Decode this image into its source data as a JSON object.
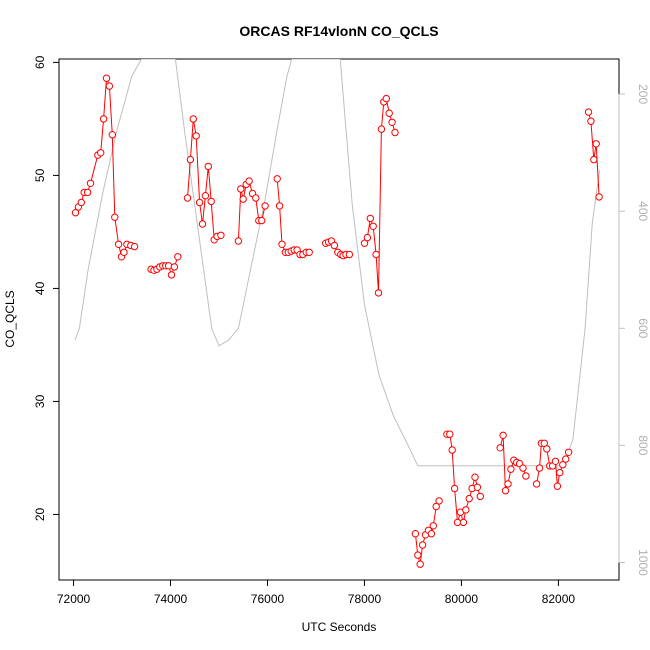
{
  "chart_data": {
    "type": "line",
    "title": "ORCAS RF14vlonN CO_QCLS",
    "xlabel": "UTC Seconds",
    "ylabel": "CO_QCLS",
    "xlim": [
      71700,
      83250
    ],
    "ylim": [
      14.2,
      60.3
    ],
    "x_ticks": [
      72000,
      74000,
      76000,
      78000,
      80000,
      82000
    ],
    "y_ticks": [
      20,
      30,
      40,
      50,
      60
    ],
    "right_axis": {
      "ticks": [
        200,
        400,
        600,
        800,
        1000
      ],
      "range_top": 140,
      "range_bottom": 1030,
      "color": "#c0c0c0"
    },
    "grid": false,
    "series": [
      {
        "color": "#ff0000",
        "marker": "open-circle",
        "segments": [
          [
            [
              72040,
              46.7
            ],
            [
              72100,
              47.2
            ],
            [
              72160,
              47.6
            ],
            [
              72220,
              48.5
            ],
            [
              72290,
              48.5
            ],
            [
              72350,
              49.3
            ],
            [
              72500,
              51.8
            ],
            [
              72560,
              52.0
            ],
            [
              72620,
              55.0
            ],
            [
              72680,
              58.6
            ],
            [
              72740,
              57.9
            ],
            [
              72800,
              53.6
            ],
            [
              72850,
              46.3
            ],
            [
              72930,
              43.9
            ],
            [
              72990,
              42.8
            ],
            [
              73040,
              43.2
            ],
            [
              73100,
              43.9
            ],
            [
              73180,
              43.8
            ],
            [
              73260,
              43.7
            ]
          ],
          [
            [
              73600,
              41.7
            ],
            [
              73660,
              41.6
            ],
            [
              73720,
              41.7
            ],
            [
              73780,
              41.9
            ],
            [
              73840,
              42.0
            ],
            [
              73900,
              42.0
            ],
            [
              73960,
              42.0
            ],
            [
              74020,
              41.2
            ],
            [
              74080,
              41.9
            ],
            [
              74150,
              42.8
            ]
          ],
          [
            [
              74350,
              48.0
            ],
            [
              74410,
              51.4
            ],
            [
              74470,
              55.0
            ],
            [
              74530,
              53.5
            ],
            [
              74600,
              47.6
            ],
            [
              74660,
              45.7
            ],
            [
              74720,
              48.2
            ],
            [
              74780,
              50.8
            ],
            [
              74840,
              47.7
            ],
            [
              74900,
              44.3
            ],
            [
              74960,
              44.6
            ],
            [
              75040,
              44.7
            ]
          ],
          [
            [
              75400,
              44.2
            ],
            [
              75450,
              48.8
            ],
            [
              75500,
              47.9
            ],
            [
              75560,
              49.2
            ],
            [
              75620,
              49.5
            ],
            [
              75690,
              48.4
            ],
            [
              75760,
              48.0
            ],
            [
              75820,
              46.0
            ],
            [
              75880,
              46.0
            ],
            [
              75950,
              47.3
            ]
          ],
          [
            [
              76200,
              49.7
            ],
            [
              76250,
              47.3
            ],
            [
              76300,
              43.9
            ],
            [
              76370,
              43.2
            ],
            [
              76430,
              43.2
            ],
            [
              76490,
              43.3
            ],
            [
              76550,
              43.4
            ],
            [
              76610,
              43.4
            ],
            [
              76670,
              43.0
            ],
            [
              76730,
              43.0
            ],
            [
              76800,
              43.2
            ],
            [
              76860,
              43.2
            ]
          ],
          [
            [
              77200,
              44.0
            ],
            [
              77260,
              44.1
            ],
            [
              77320,
              44.2
            ],
            [
              77380,
              43.8
            ],
            [
              77450,
              43.2
            ],
            [
              77510,
              43.0
            ],
            [
              77560,
              42.9
            ],
            [
              77620,
              43.0
            ],
            [
              77690,
              43.0
            ]
          ],
          [
            [
              78000,
              44.0
            ],
            [
              78060,
              44.5
            ],
            [
              78120,
              46.2
            ],
            [
              78180,
              45.5
            ],
            [
              78240,
              43.0
            ],
            [
              78290,
              39.6
            ],
            [
              78350,
              54.1
            ],
            [
              78400,
              56.5
            ],
            [
              78450,
              56.8
            ],
            [
              78510,
              55.5
            ],
            [
              78570,
              54.7
            ],
            [
              78630,
              53.8
            ]
          ],
          [
            [
              79050,
              18.3
            ],
            [
              79100,
              16.4
            ],
            [
              79150,
              15.6
            ],
            [
              79200,
              17.3
            ],
            [
              79260,
              18.2
            ],
            [
              79320,
              18.6
            ],
            [
              79380,
              18.3
            ],
            [
              79420,
              19.0
            ],
            [
              79480,
              20.7
            ],
            [
              79540,
              21.2
            ]
          ],
          [
            [
              79700,
              27.1
            ],
            [
              79760,
              27.1
            ],
            [
              79810,
              25.7
            ],
            [
              79860,
              22.3
            ],
            [
              79920,
              19.3
            ],
            [
              79980,
              20.2
            ],
            [
              80040,
              19.3
            ],
            [
              80090,
              20.4
            ],
            [
              80160,
              21.4
            ],
            [
              80220,
              22.3
            ],
            [
              80280,
              23.3
            ],
            [
              80330,
              22.4
            ],
            [
              80390,
              21.6
            ]
          ],
          [
            [
              80800,
              25.9
            ],
            [
              80860,
              27.0
            ],
            [
              80910,
              22.1
            ],
            [
              80960,
              22.7
            ],
            [
              81020,
              24.0
            ],
            [
              81080,
              24.8
            ],
            [
              81140,
              24.6
            ],
            [
              81200,
              24.5
            ],
            [
              81270,
              24.1
            ],
            [
              81330,
              23.4
            ]
          ],
          [
            [
              81550,
              22.7
            ],
            [
              81610,
              24.1
            ],
            [
              81650,
              26.3
            ],
            [
              81710,
              26.3
            ],
            [
              81760,
              25.8
            ],
            [
              81820,
              24.3
            ],
            [
              81880,
              24.3
            ],
            [
              81940,
              24.7
            ],
            [
              81980,
              22.5
            ],
            [
              82030,
              23.7
            ],
            [
              82090,
              24.4
            ],
            [
              82150,
              24.9
            ],
            [
              82210,
              25.5
            ]
          ],
          [
            [
              82620,
              55.6
            ],
            [
              82670,
              54.8
            ],
            [
              82730,
              51.4
            ],
            [
              82780,
              52.8
            ],
            [
              82840,
              48.1
            ]
          ]
        ]
      },
      {
        "color": "#bfbfbf",
        "marker": "none",
        "points_right_axis": [
          [
            72030,
            620
          ],
          [
            72120,
            600
          ],
          [
            72300,
            500
          ],
          [
            72600,
            370
          ],
          [
            72900,
            260
          ],
          [
            73200,
            170
          ],
          [
            73400,
            140
          ],
          [
            74100,
            140
          ],
          [
            74300,
            270
          ],
          [
            74600,
            450
          ],
          [
            74850,
            600
          ],
          [
            75000,
            630
          ],
          [
            75200,
            620
          ],
          [
            75400,
            600
          ],
          [
            75650,
            500
          ],
          [
            75950,
            380
          ],
          [
            76200,
            260
          ],
          [
            76400,
            170
          ],
          [
            76500,
            140
          ],
          [
            77500,
            140
          ],
          [
            77750,
            390
          ],
          [
            78000,
            560
          ],
          [
            78300,
            680
          ],
          [
            78600,
            750
          ],
          [
            78900,
            800
          ],
          [
            79100,
            835
          ],
          [
            80000,
            835
          ],
          [
            81000,
            835
          ],
          [
            81500,
            835
          ],
          [
            82100,
            835
          ],
          [
            82300,
            790
          ],
          [
            82550,
            600
          ],
          [
            82700,
            420
          ],
          [
            82850,
            330
          ]
        ]
      }
    ]
  }
}
